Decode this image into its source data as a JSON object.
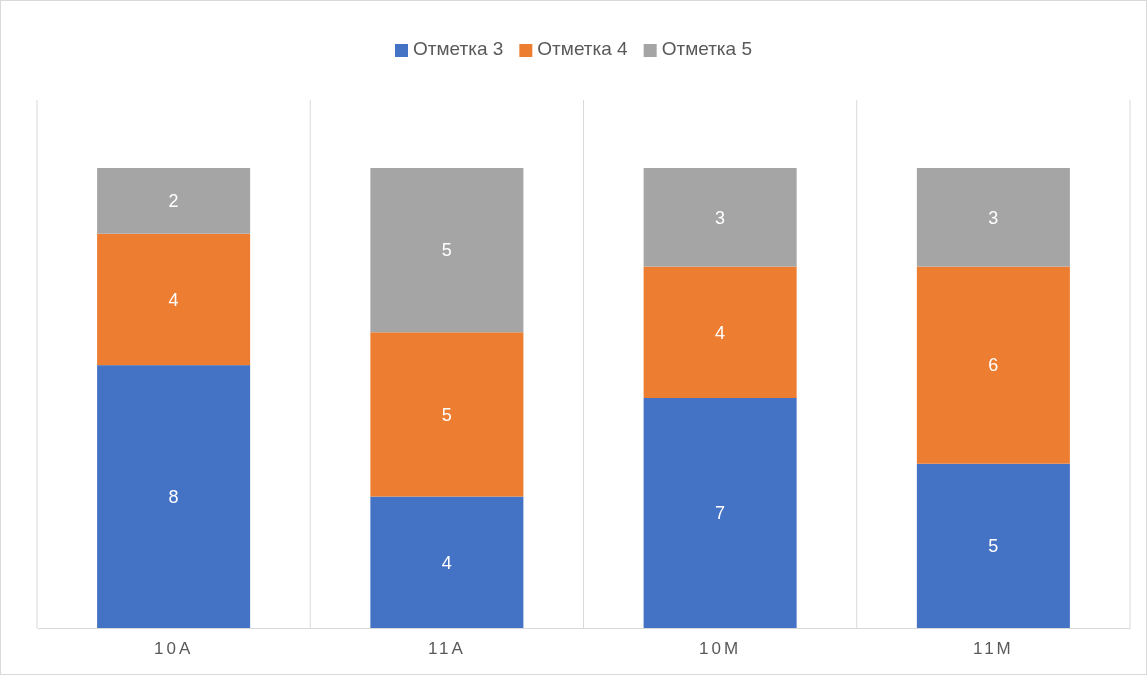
{
  "chart_data": {
    "type": "bar",
    "stacked": true,
    "categories": [
      "10А",
      "11А",
      "10М",
      "11М"
    ],
    "series": [
      {
        "name": "Отметка 3",
        "color": "#4472c4",
        "values": [
          8,
          4,
          7,
          5
        ]
      },
      {
        "name": "Отметка 4",
        "color": "#ed7d31",
        "values": [
          4,
          5,
          4,
          6
        ]
      },
      {
        "name": "Отметка 5",
        "color": "#a5a5a5",
        "values": [
          2,
          5,
          3,
          3
        ]
      }
    ],
    "data_labels": true,
    "grid": "x",
    "legend": "top"
  }
}
